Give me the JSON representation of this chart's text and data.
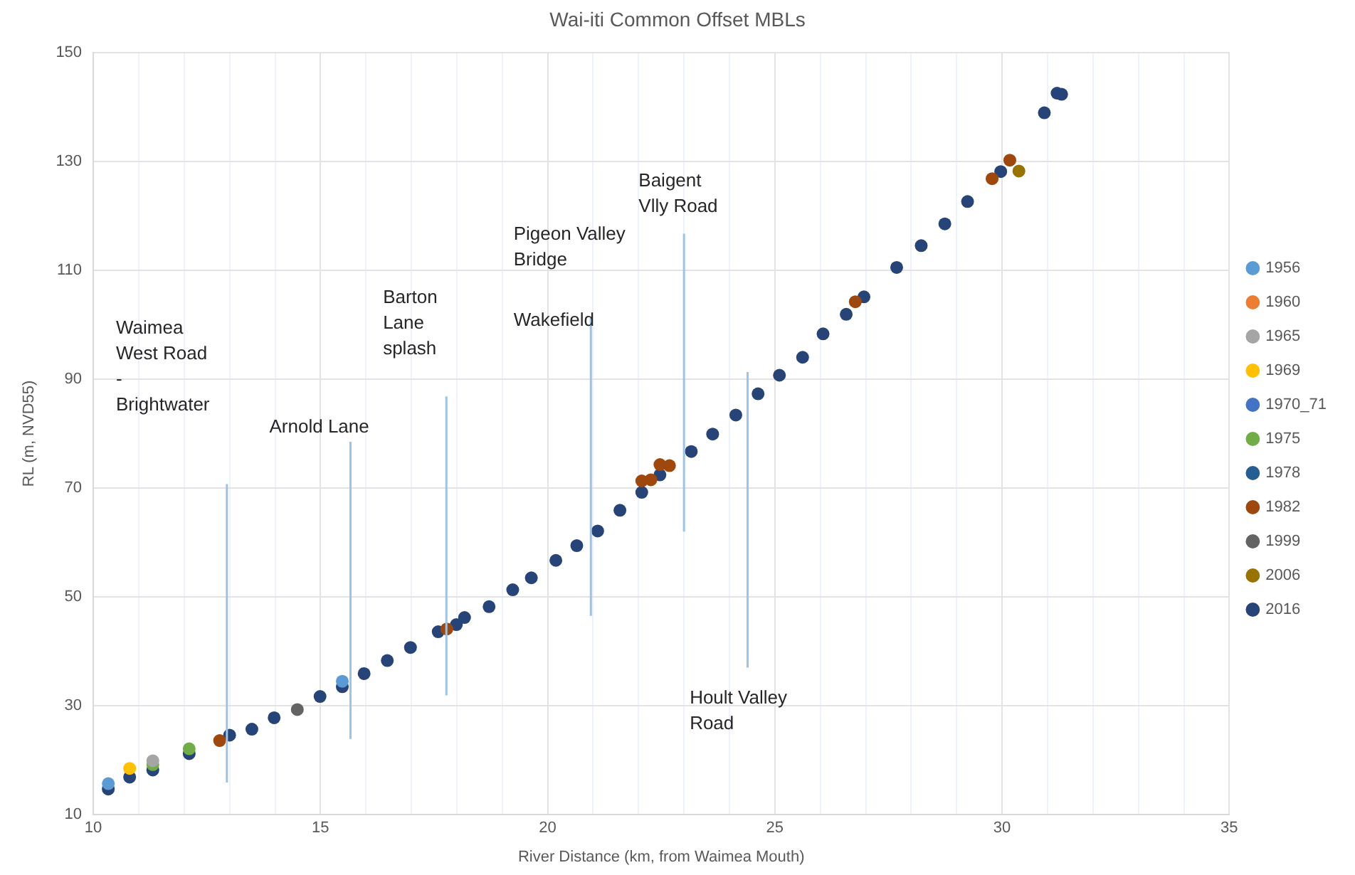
{
  "chart_data": {
    "type": "scatter",
    "title": "Wai-iti Common Offset MBLs",
    "xlabel": "River Distance (km, from Waimea Mouth)",
    "ylabel": "RL (m, NVD55)",
    "xlim": [
      10,
      35
    ],
    "xticks": [
      10,
      {
        "value": 11,
        "label": null
      },
      {
        "value": 12,
        "label": null
      },
      {
        "value": 13,
        "label": null
      },
      {
        "value": 14,
        "label": null
      },
      15,
      {
        "value": 16,
        "label": null
      },
      {
        "value": 17,
        "label": null
      },
      {
        "value": 18,
        "label": null
      },
      {
        "value": 19,
        "label": null
      },
      20,
      {
        "value": 21,
        "label": null
      },
      {
        "value": 22,
        "label": null
      },
      {
        "value": 23,
        "label": null
      },
      {
        "value": 24,
        "label": null
      },
      25,
      {
        "value": 26,
        "label": null
      },
      {
        "value": 27,
        "label": null
      },
      {
        "value": 28,
        "label": null
      },
      {
        "value": 29,
        "label": null
      },
      30,
      {
        "value": 31,
        "label": null
      },
      {
        "value": 32,
        "label": null
      },
      {
        "value": 33,
        "label": null
      },
      {
        "value": 34,
        "label": null
      },
      35
    ],
    "ylim": [
      10,
      150
    ],
    "yticks": [
      10,
      30,
      50,
      70,
      90,
      110,
      130,
      150
    ],
    "grid": true,
    "legend": "right",
    "marker": "circle",
    "series": [
      {
        "type": "line",
        "marker": "none",
        "color": "#9dc3e6",
        "x": [
          12.94,
          12.94
        ],
        "values": [
          15.9,
          70.7
        ]
      },
      {
        "type": "line",
        "marker": "none",
        "color": "#9dc3e6",
        "x": [
          15.66,
          15.66
        ],
        "values": [
          23.9,
          78.5
        ]
      },
      {
        "type": "line",
        "marker": "none",
        "color": "#9dc3e6",
        "x": [
          17.77,
          17.77
        ],
        "values": [
          31.9,
          86.8
        ]
      },
      {
        "type": "line",
        "marker": "none",
        "color": "#9dc3e6",
        "x": [
          20.95,
          20.95
        ],
        "values": [
          46.5,
          101.5
        ]
      },
      {
        "type": "line",
        "marker": "none",
        "color": "#9dc3e6",
        "x": [
          23.0,
          23.0
        ],
        "values": [
          62,
          116.7
        ]
      },
      {
        "type": "line",
        "marker": "none",
        "color": "#9dc3e6",
        "x": [
          24.4,
          24.4
        ],
        "values": [
          37,
          91.3
        ]
      },
      {
        "name": "1956",
        "color": "#5b9bd5",
        "x": [
          10.33,
          15.48
        ],
        "values": [
          15.7,
          34.5
        ]
      },
      {
        "name": "1960",
        "color": "#ed7d31"
      },
      {
        "name": "1965",
        "color": "#a5a5a5",
        "x": [
          11.31
        ],
        "values": [
          19.9
        ]
      },
      {
        "name": "1969",
        "color": "#ffc000",
        "x": [
          10.8
        ],
        "values": [
          18.5
        ]
      },
      {
        "name": "1970_71",
        "color": "#4472c4"
      },
      {
        "name": "1975",
        "color": "#70ad47",
        "x": [
          11.31,
          12.11
        ],
        "values": [
          19.2,
          22.1
        ]
      },
      {
        "name": "1978",
        "color": "#255e91"
      },
      {
        "name": "1982",
        "color": "#9e480e",
        "x": [
          12.78,
          17.78,
          22.07,
          22.27,
          22.47,
          22.68,
          26.77,
          29.78,
          30.17
        ],
        "values": [
          23.6,
          44.1,
          71.3,
          71.5,
          74.3,
          74.1,
          104.2,
          126.8,
          130.2
        ]
      },
      {
        "name": "1999",
        "color": "#636363",
        "x": [
          14.49
        ],
        "values": [
          29.3
        ]
      },
      {
        "name": "2006",
        "color": "#997300",
        "x": [
          30.37
        ],
        "values": [
          128.2
        ]
      },
      {
        "name": "2016",
        "color": "#264478",
        "x": [
          10.33,
          10.8,
          11.31,
          12.11,
          13.0,
          13.49,
          13.98,
          14.99,
          15.48,
          15.96,
          16.47,
          16.98,
          17.59,
          17.99,
          18.17,
          18.71,
          19.23,
          19.64,
          20.18,
          20.64,
          21.1,
          21.59,
          22.07,
          22.47,
          23.16,
          23.63,
          24.14,
          24.63,
          25.1,
          25.61,
          26.06,
          26.57,
          26.96,
          27.68,
          28.22,
          28.74,
          29.24,
          29.97,
          30.93,
          31.21,
          31.31
        ],
        "values": [
          14.7,
          16.9,
          18.2,
          21.2,
          24.6,
          25.7,
          27.8,
          31.7,
          33.5,
          35.9,
          38.3,
          40.7,
          43.6,
          44.9,
          46.2,
          48.2,
          51.3,
          53.5,
          56.7,
          59.4,
          62.1,
          65.9,
          69.2,
          72.4,
          76.7,
          79.9,
          83.4,
          87.3,
          90.7,
          94.0,
          98.3,
          101.9,
          105.1,
          110.5,
          114.5,
          118.5,
          122.6,
          128.1,
          138.9,
          142.5,
          142.3
        ]
      }
    ],
    "annotations": [
      "Waimea\nWest Road\n-\nBrightwater",
      "Arnold Lane",
      "Barton\nLane\nsplash",
      "Pigeon Valley\nBridge",
      "Wakefield",
      "Baigent\nVlly Road",
      "Hoult Valley\nRoad"
    ]
  }
}
